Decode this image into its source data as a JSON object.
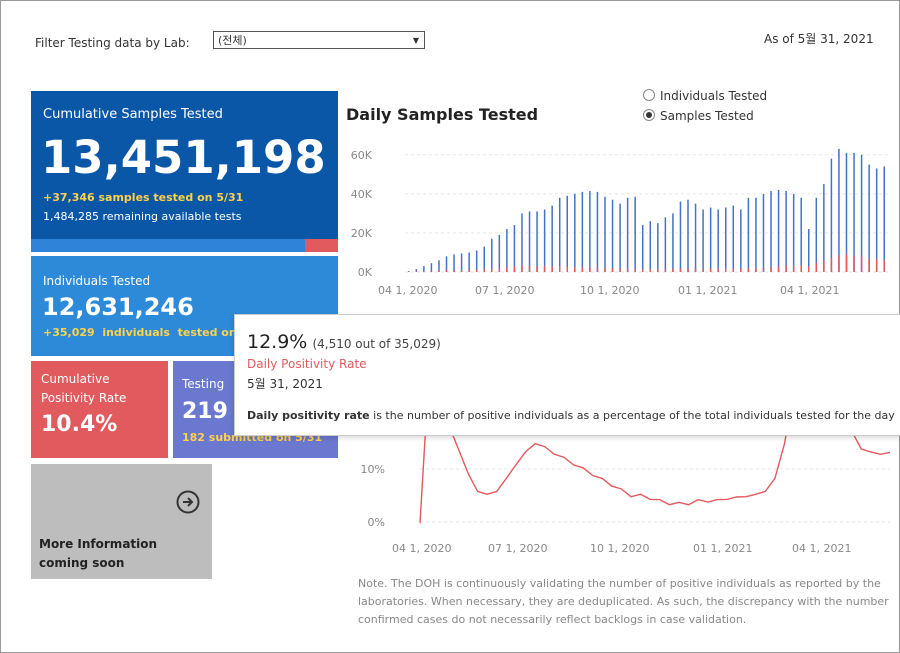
{
  "filter": {
    "label": "Filter Testing data by Lab:",
    "value": "(전체)"
  },
  "as_of": "As of 5월 31, 2021",
  "cumulative": {
    "title": "Cumulative Samples Tested",
    "value": "13,451,198",
    "daily": "+37,346 samples tested on 5/31",
    "remaining": "1,484,285 remaining available tests"
  },
  "individuals": {
    "title": "Individuals Tested",
    "value": "12,631,246",
    "daily": "+35,029  individuals  tested on"
  },
  "positivity": {
    "title_line1": "Cumulative",
    "title_line2": "Positivity Rate",
    "value": "10.4%"
  },
  "labs": {
    "title": "Testing",
    "value": "219",
    "sub": "182 submitted on 5/31"
  },
  "more_info": {
    "line1": "More Information",
    "line2": "coming soon",
    "icon": "arrow-circle-right-icon"
  },
  "daily_chart": {
    "title": "Daily Samples Tested",
    "radio": [
      {
        "label": "Individuals Tested",
        "selected": false
      },
      {
        "label": "Samples Tested",
        "selected": true
      }
    ]
  },
  "tooltip": {
    "rate": "12.9%",
    "detail": "(4,510 out of  35,029)",
    "label": "Daily Positivity Rate",
    "date": "5월 31, 2021",
    "desc_bold": "Daily positivity rate",
    "desc": " is the number of positive individuals as a percentage of the total individuals tested for the day"
  },
  "note": "Note. The DOH is continuously validating the number of positive individuals as reported by the laboratories. When necessary, they are deduplicated. As such, the discrepancy with the number confirmed cases do not necessarily reflect backlogs in case validation.",
  "colors": {
    "blue": "#0a57a8",
    "red": "#e05a5e",
    "yellow": "#ffd24a",
    "purple": "#6b78cf"
  },
  "chart_data": [
    {
      "type": "bar",
      "title": "Daily Samples Tested",
      "y_ticks": [
        "0K",
        "20K",
        "40K",
        "60K"
      ],
      "x_ticks": [
        "04 1, 2020",
        "07 1, 2020",
        "10 1, 2020",
        "01 1, 2021",
        "04 1, 2021"
      ],
      "ylim": [
        0,
        65000
      ],
      "series": [
        {
          "name": "Samples Tested",
          "color": "#4472c4",
          "values": [
            500,
            1500,
            3000,
            4500,
            6000,
            8000,
            9000,
            9500,
            10000,
            11000,
            13000,
            17000,
            19000,
            22000,
            24000,
            30000,
            31000,
            31000,
            32000,
            34000,
            38000,
            39000,
            40000,
            41000,
            41500,
            41000,
            38500,
            37000,
            35000,
            38000,
            38500,
            24000,
            26000,
            25000,
            28000,
            30000,
            36000,
            37000,
            35000,
            32000,
            33000,
            32000,
            33000,
            34000,
            32000,
            38000,
            38000,
            40000,
            41500,
            42000,
            41500,
            40000,
            38000,
            22000,
            38000,
            45000,
            58000,
            63000,
            61000,
            61000,
            60000,
            55000,
            53000,
            54000
          ]
        },
        {
          "name": "Positive",
          "color": "#e05a5e",
          "values": [
            200,
            300,
            300,
            400,
            600,
            800,
            900,
            1000,
            1100,
            1200,
            1500,
            1800,
            2000,
            2500,
            3000,
            3200,
            3300,
            3100,
            3000,
            2900,
            2800,
            2700,
            2600,
            2400,
            2300,
            2200,
            2100,
            2000,
            1900,
            1800,
            1700,
            1300,
            1500,
            1600,
            1700,
            1700,
            1800,
            1900,
            1800,
            1700,
            1800,
            1800,
            1800,
            1900,
            1800,
            2000,
            2100,
            2300,
            2500,
            3000,
            3200,
            3400,
            3600,
            3000,
            4500,
            5800,
            7000,
            8500,
            9000,
            8500,
            8000,
            7000,
            6500,
            6000
          ]
        }
      ]
    },
    {
      "type": "line",
      "title": "Daily Positivity Rate",
      "y_ticks": [
        "0%",
        "10%"
      ],
      "x_ticks": [
        "04 1, 2020",
        "07 1, 2020",
        "10 1, 2020",
        "01 1, 2021",
        "04 1, 2021"
      ],
      "series": [
        {
          "name": "Daily Positivity Rate",
          "color": "#e05a5e",
          "values": [
            0,
            30,
            20,
            18,
            14,
            9,
            6,
            5,
            6,
            8,
            11,
            13,
            15,
            14,
            13,
            12,
            11,
            10,
            9,
            8,
            7,
            6,
            5,
            5,
            4.5,
            4,
            3.5,
            3.5,
            3.5,
            4,
            4,
            4,
            4.5,
            4.5,
            5,
            5,
            6,
            8,
            15,
            25,
            28,
            26,
            24,
            23,
            20,
            17,
            14,
            13,
            13,
            12.9
          ]
        }
      ]
    }
  ]
}
